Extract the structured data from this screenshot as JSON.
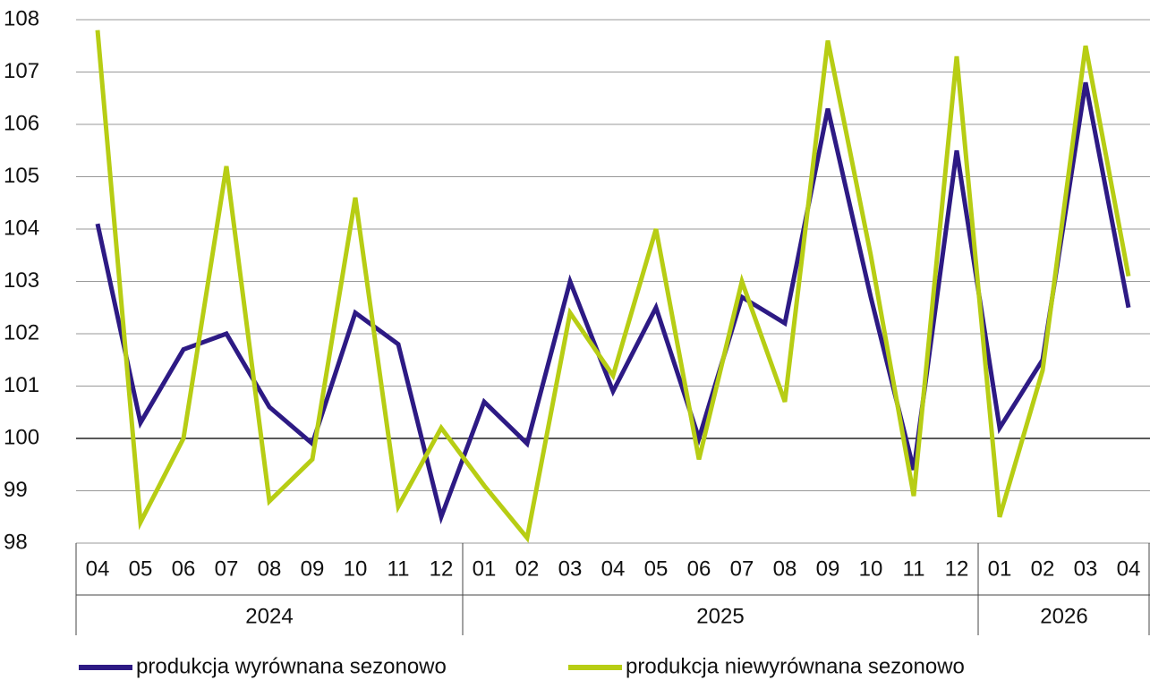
{
  "chart_data": {
    "type": "line",
    "category_groups": [
      {
        "label": "2024",
        "categories": [
          "04",
          "05",
          "06",
          "07",
          "08",
          "09",
          "10",
          "11",
          "12"
        ]
      },
      {
        "label": "2025",
        "categories": [
          "01",
          "02",
          "03",
          "04",
          "05",
          "06",
          "07",
          "08",
          "09",
          "10",
          "11",
          "12"
        ]
      },
      {
        "label": "2026",
        "categories": [
          "01",
          "02",
          "03",
          "04"
        ]
      }
    ],
    "series": [
      {
        "name": "produkcja wyrównana sezonowo",
        "color": "#2d1a84",
        "values": [
          104.1,
          100.3,
          101.7,
          102.0,
          100.6,
          99.9,
          102.4,
          101.8,
          98.5,
          100.7,
          99.9,
          103.0,
          100.9,
          102.5,
          100.0,
          102.7,
          102.2,
          106.3,
          102.7,
          99.4,
          105.5,
          100.2,
          101.5,
          106.8,
          102.5
        ]
      },
      {
        "name": "produkcja niewyrównana sezonowo",
        "color": "#b7cd14",
        "values": [
          107.8,
          98.4,
          100.0,
          105.2,
          98.8,
          99.6,
          104.6,
          98.7,
          100.2,
          99.1,
          98.1,
          102.4,
          101.2,
          104.0,
          99.6,
          103.0,
          100.7,
          107.6,
          103.5,
          98.9,
          107.3,
          98.5,
          101.3,
          107.5,
          103.1
        ]
      }
    ],
    "ylim": [
      98,
      108
    ],
    "yticks": [
      98,
      99,
      100,
      101,
      102,
      103,
      104,
      105,
      106,
      107,
      108
    ],
    "grid": true,
    "baseline": 100
  }
}
